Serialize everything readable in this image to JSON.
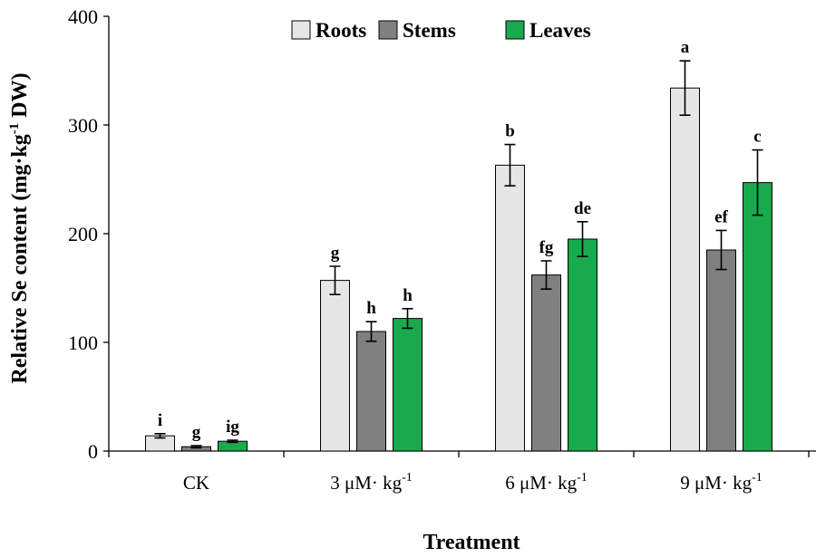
{
  "chart_data": {
    "type": "bar",
    "title": "",
    "xlabel": "Treatment",
    "ylabel_main": "Relative Se content (mg·kg",
    "ylabel_sup": "-1",
    "ylabel_tail": " DW)",
    "ylim": [
      0,
      400
    ],
    "yticks": [
      0,
      100,
      200,
      300,
      400
    ],
    "categories": [
      {
        "label": "CK",
        "sup": ""
      },
      {
        "label": "3 μM· kg",
        "sup": "-1"
      },
      {
        "label": "6 μM· kg",
        "sup": "-1"
      },
      {
        "label": "9 μM· kg",
        "sup": "-1"
      }
    ],
    "series": [
      {
        "name": "Roots",
        "color": "#e6e6e6",
        "values": [
          14,
          157,
          263,
          334
        ],
        "errors": [
          2,
          13,
          19,
          25
        ],
        "letters": [
          "i",
          "g",
          "b",
          "a"
        ]
      },
      {
        "name": "Stems",
        "color": "#808080",
        "values": [
          4,
          110,
          162,
          185
        ],
        "errors": [
          1,
          9,
          13,
          18
        ],
        "letters": [
          "g",
          "h",
          "fg",
          "ef"
        ]
      },
      {
        "name": "Leaves",
        "color": "#1aaa4e",
        "values": [
          9,
          122,
          195,
          247
        ],
        "errors": [
          1,
          9,
          16,
          30
        ],
        "letters": [
          "ig",
          "h",
          "de",
          "c"
        ]
      }
    ],
    "legend": "top-center"
  }
}
